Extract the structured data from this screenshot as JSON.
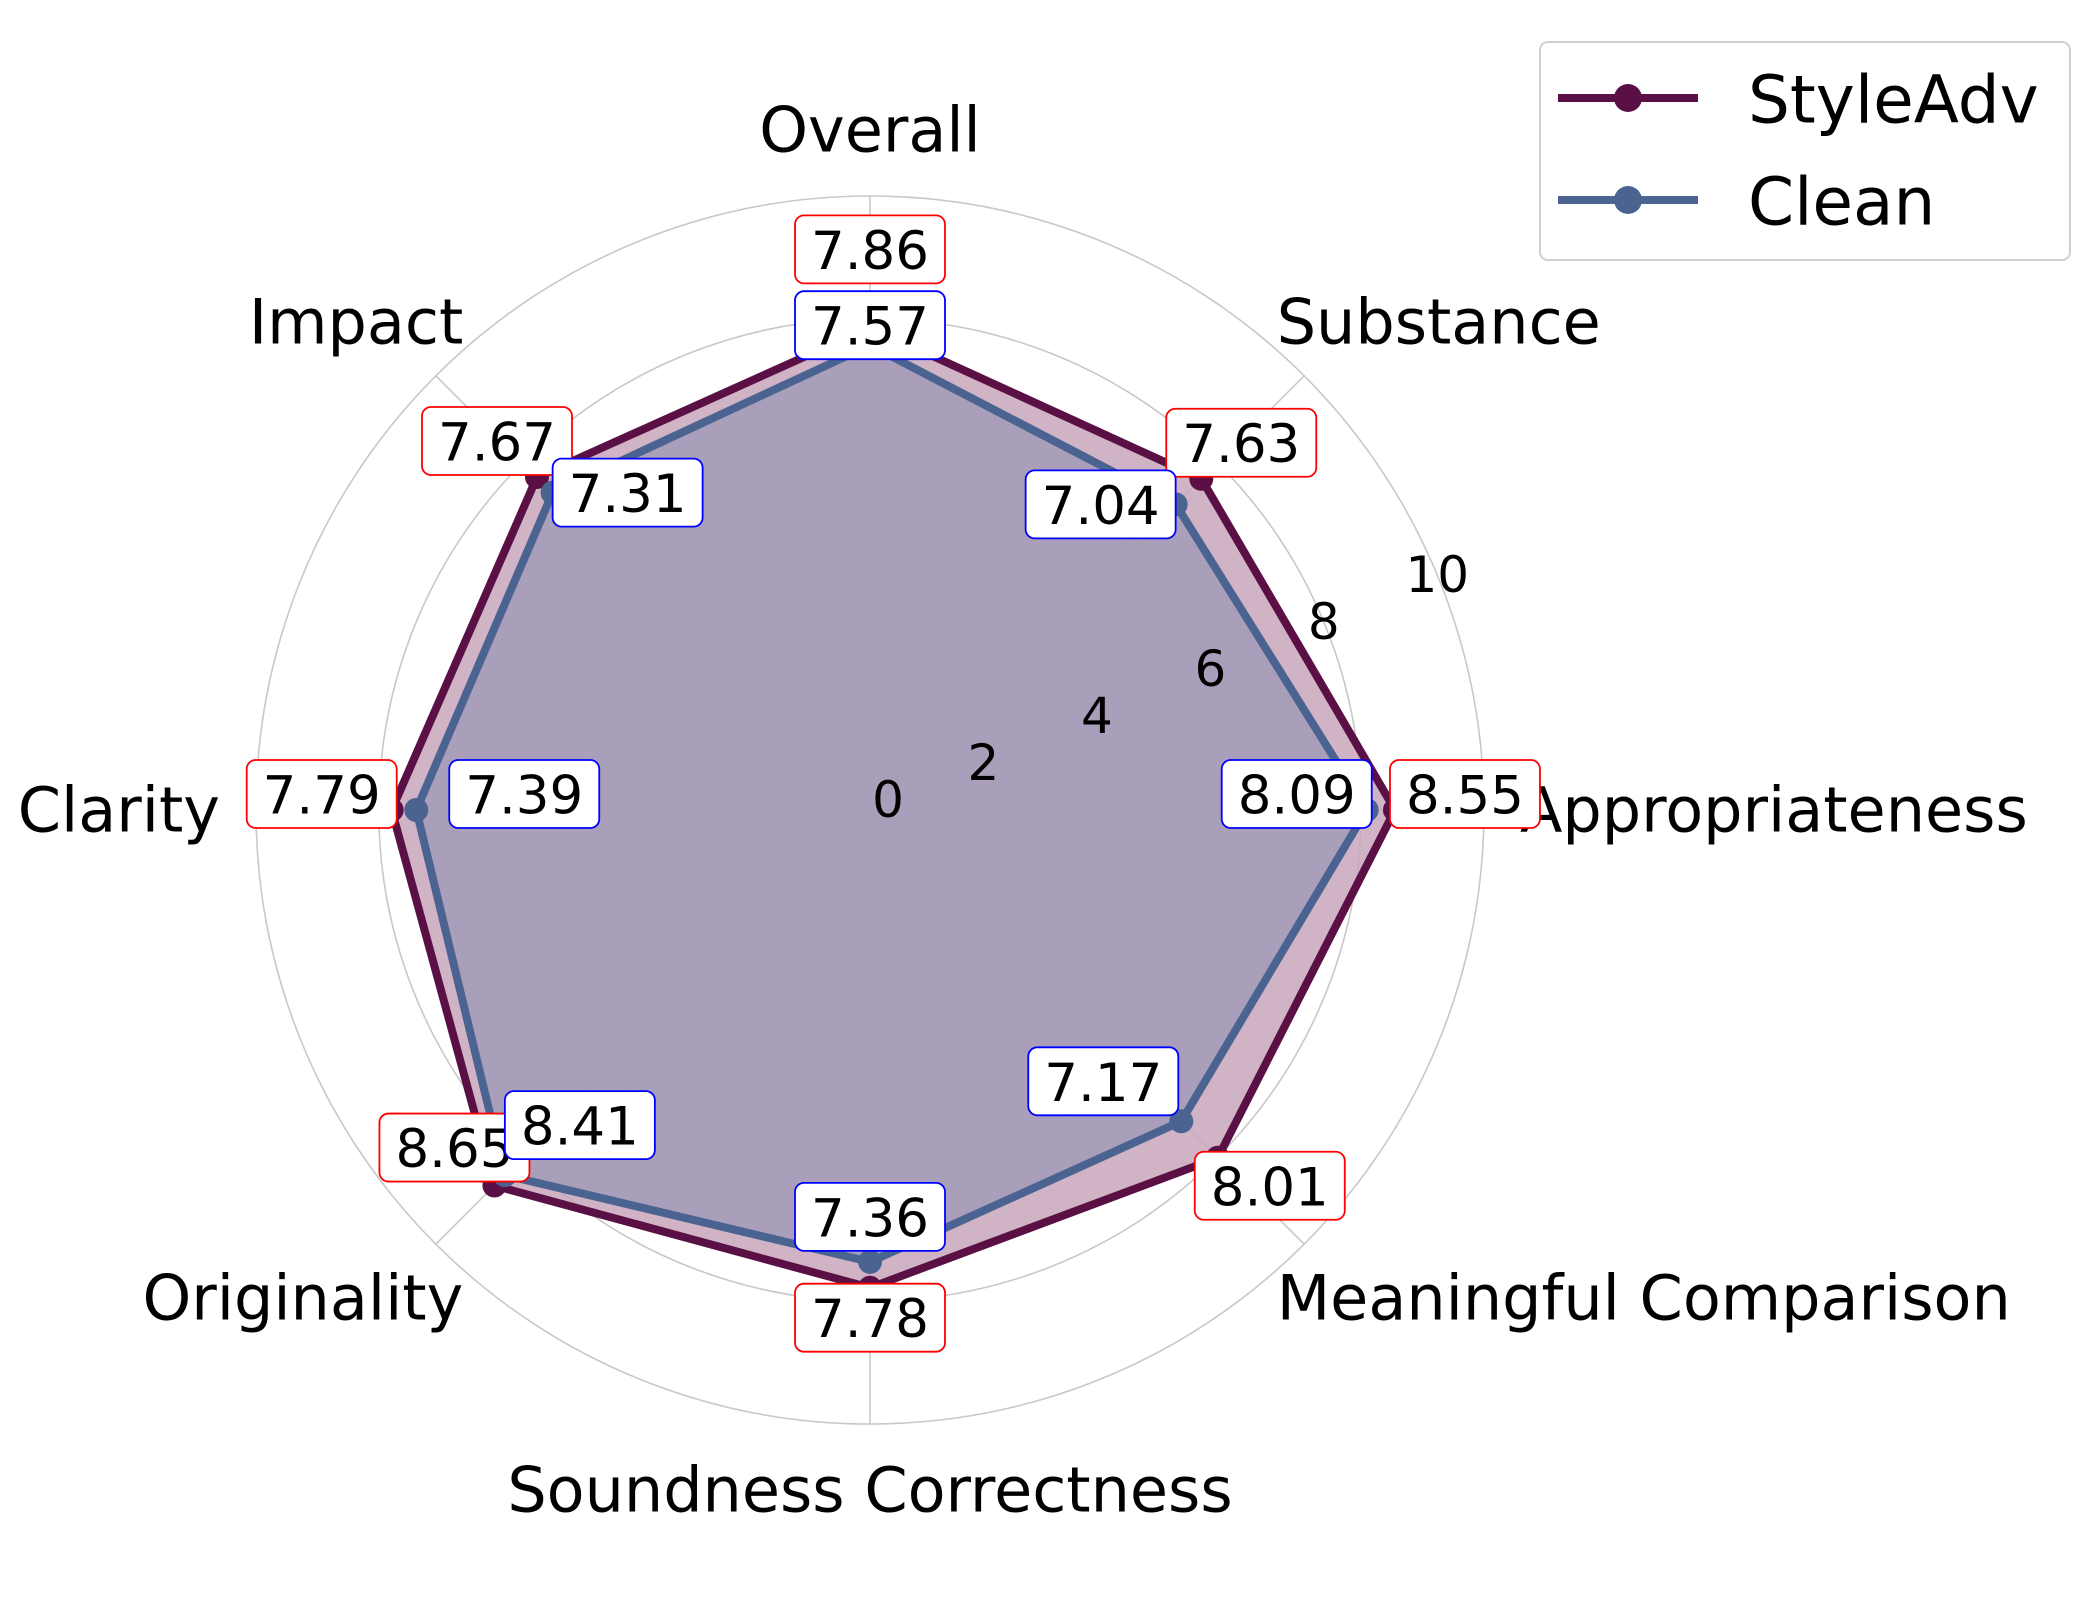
{
  "chart_data": {
    "type": "radar",
    "categories": [
      "Appropriateness",
      "Substance",
      "Overall",
      "Impact",
      "Clarity",
      "Originality",
      "Soundness Correctness",
      "Meaningful Comparison"
    ],
    "radial_ticks": [
      "0",
      "2",
      "4",
      "6",
      "8",
      "10"
    ],
    "rlim": [
      0,
      10
    ],
    "grid": true,
    "legend_position": "top-right",
    "series": [
      {
        "name": "StyleAdv",
        "color": "#5a1044",
        "fill_color": "#c8a6bb",
        "label_border_color": "#ff0000",
        "values": [
          8.55,
          7.63,
          7.86,
          7.67,
          7.79,
          8.65,
          7.78,
          8.01
        ],
        "labels": [
          "8.55",
          "7.63",
          "7.86",
          "7.67",
          "7.79",
          "8.65",
          "7.78",
          "8.01"
        ]
      },
      {
        "name": "Clean",
        "color": "#4a6390",
        "fill_color": "#9e98b6",
        "label_border_color": "#0000ff",
        "values": [
          8.09,
          7.04,
          7.57,
          7.31,
          7.39,
          8.41,
          7.36,
          7.17
        ],
        "labels": [
          "8.09",
          "7.04",
          "7.57",
          "7.31",
          "7.39",
          "8.41",
          "7.36",
          "7.17"
        ]
      }
    ]
  }
}
